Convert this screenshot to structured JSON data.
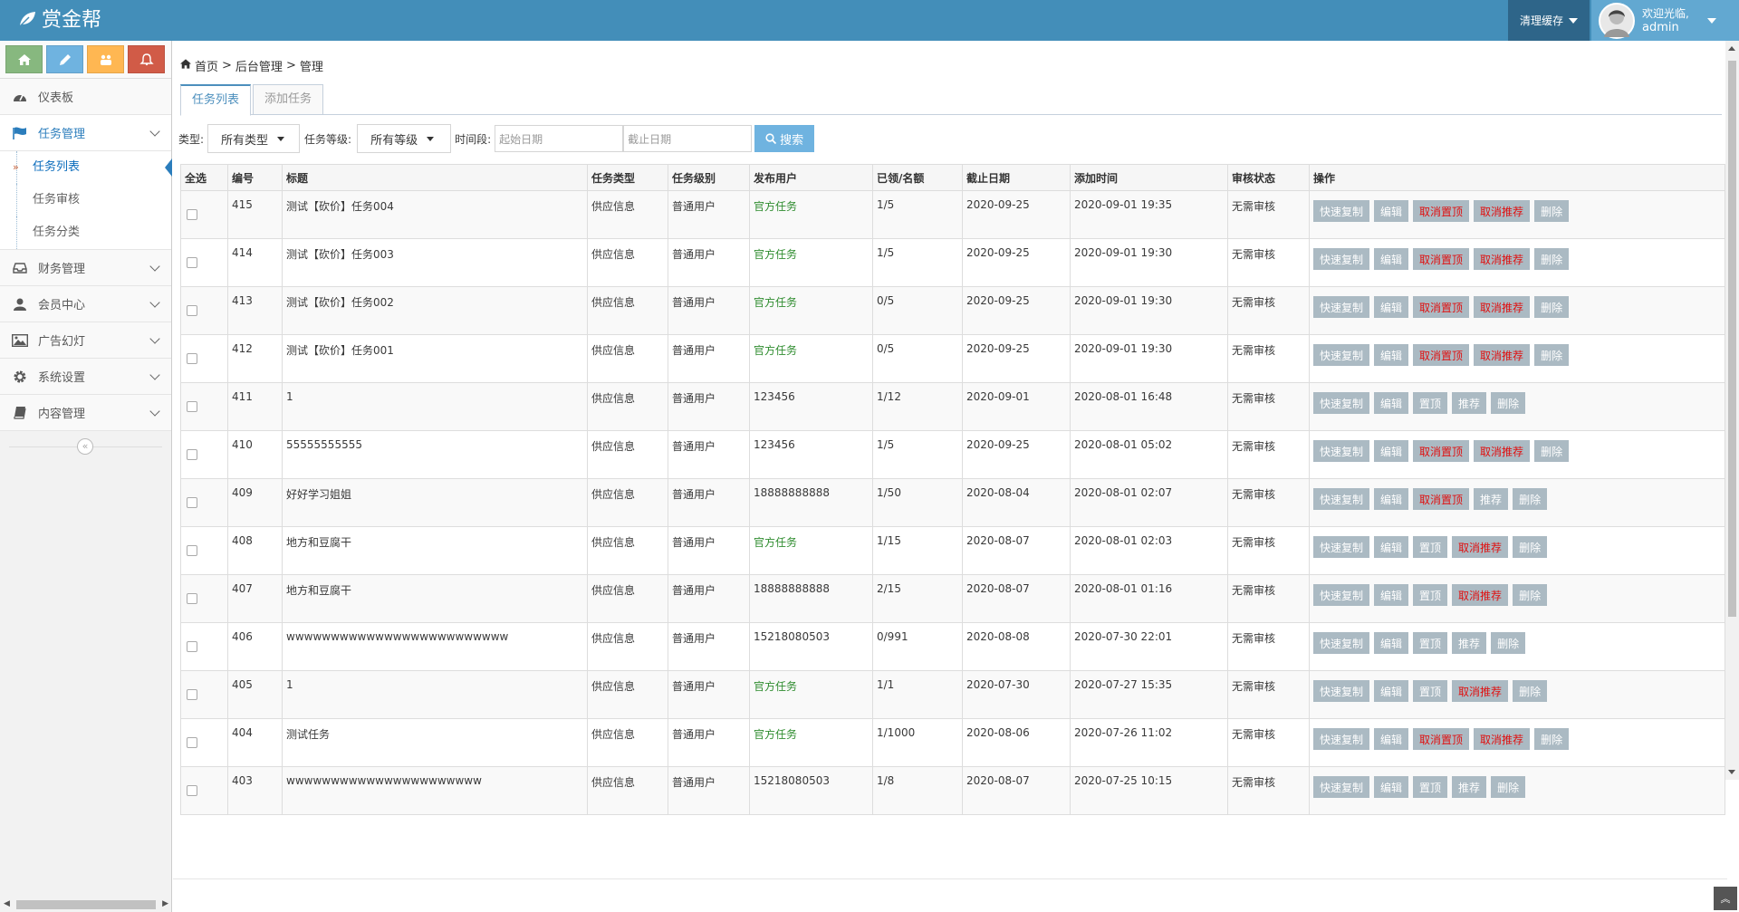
{
  "navbar": {
    "brand": "赏金帮",
    "cache_label": "清理缓存",
    "welcome": "欢迎光临,",
    "username": "admin"
  },
  "colors": {
    "navbar_bg": "#438eb9",
    "shortcut_home": "#87b87f",
    "shortcut_edit": "#6fb3e0",
    "shortcut_group": "#ffb752",
    "shortcut_bell": "#d15b47",
    "op_button": "#abbac3",
    "search_button": "#6fb3e0"
  },
  "sidebar": {
    "items": [
      {
        "label": "仪表板",
        "icon": "dashboard-icon"
      },
      {
        "label": "任务管理",
        "icon": "flag-icon"
      },
      {
        "label": "财务管理",
        "icon": "inbox-icon"
      },
      {
        "label": "会员中心",
        "icon": "user-icon"
      },
      {
        "label": "广告幻灯",
        "icon": "picture-icon"
      },
      {
        "label": "系统设置",
        "icon": "gear-icon"
      },
      {
        "label": "内容管理",
        "icon": "book-icon"
      }
    ],
    "submenu": [
      "任务列表",
      "任务审核",
      "任务分类"
    ]
  },
  "breadcrumb": [
    "首页",
    "后台管理",
    "管理"
  ],
  "tabs": [
    "任务列表",
    "添加任务"
  ],
  "filter": {
    "type_label": "类型:",
    "type_value": "所有类型",
    "level_label": "任务等级:",
    "level_value": "所有等级",
    "time_label": "时间段:",
    "start_placeholder": "起始日期",
    "end_placeholder": "截止日期",
    "search_label": "搜索"
  },
  "table": {
    "headers": [
      "全选",
      "编号",
      "标题",
      "任务类型",
      "任务级别",
      "发布用户",
      "已领/名额",
      "截止日期",
      "添加时间",
      "审核状态",
      "操作"
    ],
    "rows": [
      {
        "id": "415",
        "title": "测试【砍价】任务004",
        "type": "供应信息",
        "level": "普通用户",
        "user": "官方任务",
        "quota": "1/5",
        "deadline": "2020-09-25",
        "added": "2020-09-01 19:35",
        "status": "无需审核",
        "ops": [
          "快速复制",
          "编辑",
          "取消置顶",
          "取消推荐",
          "删除"
        ]
      },
      {
        "id": "414",
        "title": "测试【砍价】任务003",
        "type": "供应信息",
        "level": "普通用户",
        "user": "官方任务",
        "quota": "1/5",
        "deadline": "2020-09-25",
        "added": "2020-09-01 19:30",
        "status": "无需审核",
        "ops": [
          "快速复制",
          "编辑",
          "取消置顶",
          "取消推荐",
          "删除"
        ]
      },
      {
        "id": "413",
        "title": "测试【砍价】任务002",
        "type": "供应信息",
        "level": "普通用户",
        "user": "官方任务",
        "quota": "0/5",
        "deadline": "2020-09-25",
        "added": "2020-09-01 19:30",
        "status": "无需审核",
        "ops": [
          "快速复制",
          "编辑",
          "取消置顶",
          "取消推荐",
          "删除"
        ]
      },
      {
        "id": "412",
        "title": "测试【砍价】任务001",
        "type": "供应信息",
        "level": "普通用户",
        "user": "官方任务",
        "quota": "0/5",
        "deadline": "2020-09-25",
        "added": "2020-09-01 19:30",
        "status": "无需审核",
        "ops": [
          "快速复制",
          "编辑",
          "取消置顶",
          "取消推荐",
          "删除"
        ]
      },
      {
        "id": "411",
        "title": "1",
        "type": "供应信息",
        "level": "普通用户",
        "user": "123456",
        "quota": "1/12",
        "deadline": "2020-09-01",
        "added": "2020-08-01 16:48",
        "status": "无需审核",
        "ops": [
          "快速复制",
          "编辑",
          "置顶",
          "推荐",
          "删除"
        ]
      },
      {
        "id": "410",
        "title": "55555555555",
        "type": "供应信息",
        "level": "普通用户",
        "user": "123456",
        "quota": "1/5",
        "deadline": "2020-09-25",
        "added": "2020-08-01 05:02",
        "status": "无需审核",
        "ops": [
          "快速复制",
          "编辑",
          "取消置顶",
          "取消推荐",
          "删除"
        ]
      },
      {
        "id": "409",
        "title": "好好学习姐姐",
        "type": "供应信息",
        "level": "普通用户",
        "user": "18888888888",
        "quota": "1/50",
        "deadline": "2020-08-04",
        "added": "2020-08-01 02:07",
        "status": "无需审核",
        "ops": [
          "快速复制",
          "编辑",
          "取消置顶",
          "推荐",
          "删除"
        ]
      },
      {
        "id": "408",
        "title": "地方和豆腐干",
        "type": "供应信息",
        "level": "普通用户",
        "user": "官方任务",
        "quota": "1/15",
        "deadline": "2020-08-07",
        "added": "2020-08-01 02:03",
        "status": "无需审核",
        "ops": [
          "快速复制",
          "编辑",
          "置顶",
          "取消推荐",
          "删除"
        ]
      },
      {
        "id": "407",
        "title": "地方和豆腐干",
        "type": "供应信息",
        "level": "普通用户",
        "user": "18888888888",
        "quota": "2/15",
        "deadline": "2020-08-07",
        "added": "2020-08-01 01:16",
        "status": "无需审核",
        "ops": [
          "快速复制",
          "编辑",
          "置顶",
          "取消推荐",
          "删除"
        ]
      },
      {
        "id": "406",
        "title": "wwwwwwwwwwwwwwwwwwwwwwwww",
        "type": "供应信息",
        "level": "普通用户",
        "user": "15218080503",
        "quota": "0/991",
        "deadline": "2020-08-08",
        "added": "2020-07-30 22:01",
        "status": "无需审核",
        "ops": [
          "快速复制",
          "编辑",
          "置顶",
          "推荐",
          "删除"
        ]
      },
      {
        "id": "405",
        "title": "1",
        "type": "供应信息",
        "level": "普通用户",
        "user": "官方任务",
        "quota": "1/1",
        "deadline": "2020-07-30",
        "added": "2020-07-27 15:35",
        "status": "无需审核",
        "ops": [
          "快速复制",
          "编辑",
          "置顶",
          "取消推荐",
          "删除"
        ]
      },
      {
        "id": "404",
        "title": "测试任务",
        "type": "供应信息",
        "level": "普通用户",
        "user": "官方任务",
        "quota": "1/1000",
        "deadline": "2020-08-06",
        "added": "2020-07-26 11:02",
        "status": "无需审核",
        "ops": [
          "快速复制",
          "编辑",
          "取消置顶",
          "取消推荐",
          "删除"
        ]
      },
      {
        "id": "403",
        "title": "wwwwwwwwwwwwwwwwwwwwww",
        "type": "供应信息",
        "level": "普通用户",
        "user": "15218080503",
        "quota": "1/8",
        "deadline": "2020-08-07",
        "added": "2020-07-25 10:15",
        "status": "无需审核",
        "ops": [
          "快速复制",
          "编辑",
          "置顶",
          "推荐",
          "删除"
        ]
      }
    ]
  }
}
